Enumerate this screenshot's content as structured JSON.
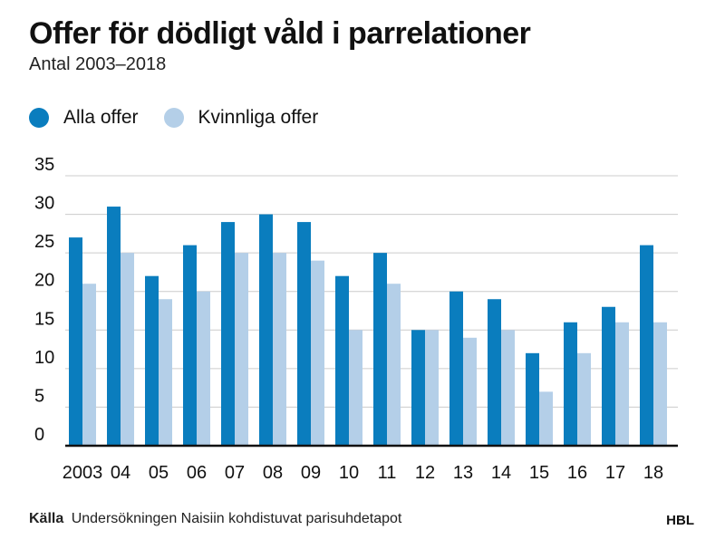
{
  "chart_data": {
    "type": "bar",
    "title": "Offer för dödligt våld i parrelationer",
    "subtitle": "Antal 2003–2018",
    "categories": [
      "2003",
      "04",
      "05",
      "06",
      "07",
      "08",
      "09",
      "10",
      "11",
      "12",
      "13",
      "14",
      "15",
      "16",
      "17",
      "18"
    ],
    "series": [
      {
        "name": "Alla offer",
        "color": "#0a7dbe",
        "values": [
          27,
          31,
          22,
          26,
          29,
          30,
          29,
          22,
          25,
          15,
          20,
          19,
          12,
          16,
          18,
          26
        ]
      },
      {
        "name": "Kvinnliga offer",
        "color": "#b4cfe8",
        "values": [
          21,
          25,
          19,
          20,
          25,
          25,
          24,
          15,
          21,
          15,
          14,
          15,
          7,
          12,
          16,
          16
        ]
      }
    ],
    "yticks": [
      0,
      5,
      10,
      15,
      20,
      25,
      30,
      35
    ],
    "ylim": [
      0,
      35
    ],
    "grid": true,
    "legend_position": "top-left"
  },
  "footer": {
    "source_label": "Källa",
    "source_text": "Undersökningen Naisiin kohdistuvat parisuhdetapot",
    "brand": "HBL"
  }
}
